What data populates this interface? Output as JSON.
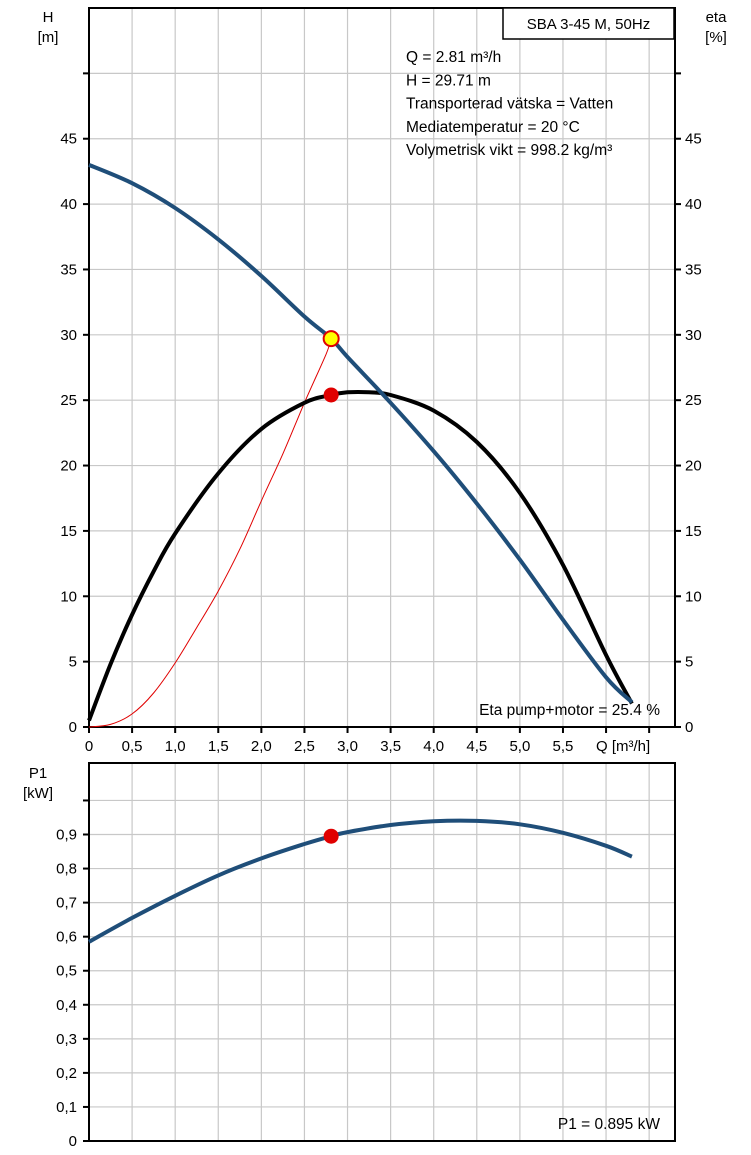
{
  "chart_data": [
    {
      "type": "line",
      "title": "SBA 3-45 M, 50Hz",
      "xlabel": "Q [m³/h]",
      "ylabel_left": {
        "name": "H",
        "unit": "[m]"
      },
      "ylabel_right": {
        "name": "eta",
        "unit": "[%]"
      },
      "xlim": [
        0,
        6.8
      ],
      "ylim": [
        0,
        55
      ],
      "x_tick_values": [
        0,
        0.5,
        1.0,
        1.5,
        2.0,
        2.5,
        3.0,
        3.5,
        4.0,
        4.5,
        5.0,
        5.5
      ],
      "x_tick_labels": [
        "0",
        "0,5",
        "1,0",
        "1,5",
        "2,0",
        "2,5",
        "3,0",
        "3,5",
        "4,0",
        "4,5",
        "5,0",
        "5,5"
      ],
      "y_tick_values": [
        0,
        5,
        10,
        15,
        20,
        25,
        30,
        35,
        40,
        45
      ],
      "y_tick_labels": [
        "0",
        "5",
        "10",
        "15",
        "20",
        "25",
        "30",
        "35",
        "40",
        "45"
      ],
      "info_lines": [
        "Q = 2.81 m³/h",
        "H = 29.71 m",
        "Transporterad vätska = Vatten",
        "Mediatemperatur = 20 °C",
        "Volymetrisk vikt = 998.2 kg/m³"
      ],
      "annotation": "Eta pump+motor = 25.4 %",
      "grid": true,
      "series": [
        {
          "key": "head",
          "color": "#1f4e79",
          "width": 4,
          "x": [
            0,
            0.5,
            1.0,
            1.5,
            2.0,
            2.5,
            2.81,
            3.0,
            3.5,
            4.0,
            4.5,
            5.0,
            5.5,
            6.0,
            6.3
          ],
          "y": [
            43.0,
            41.6,
            39.7,
            37.3,
            34.5,
            31.4,
            29.71,
            28.3,
            24.8,
            21.1,
            17.1,
            12.8,
            8.2,
            3.8,
            1.9
          ]
        },
        {
          "key": "eta",
          "color": "#000000",
          "width": 4,
          "x": [
            0,
            0.25,
            0.5,
            0.75,
            1.0,
            1.5,
            2.0,
            2.5,
            2.81,
            3.0,
            3.25,
            3.5,
            4.0,
            4.5,
            5.0,
            5.5,
            6.0,
            6.3
          ],
          "y": [
            0.5,
            4.8,
            8.6,
            11.9,
            14.8,
            19.4,
            22.8,
            24.8,
            25.4,
            25.6,
            25.6,
            25.4,
            24.2,
            21.8,
            17.9,
            12.4,
            5.5,
            1.8
          ]
        },
        {
          "key": "system-curve",
          "color": "#e00000",
          "width": 1,
          "x": [
            0,
            0.25,
            0.5,
            0.75,
            1.0,
            1.25,
            1.5,
            1.75,
            2.0,
            2.25,
            2.5,
            2.75,
            2.81
          ],
          "y": [
            0,
            0.2,
            1.0,
            2.6,
            4.9,
            7.6,
            10.4,
            13.6,
            17.3,
            20.9,
            24.8,
            28.5,
            29.71
          ]
        }
      ],
      "markers": [
        {
          "key": "duty-point",
          "x": 2.81,
          "y": 29.71,
          "fill": "#ffff00",
          "stroke": "#e00000"
        },
        {
          "key": "eta-point",
          "x": 2.81,
          "y": 25.4,
          "fill": "#e00000",
          "stroke": "#e00000"
        }
      ]
    },
    {
      "type": "line",
      "ylabel": {
        "name": "P1",
        "unit": "[kW]"
      },
      "xlim": [
        0,
        6.8
      ],
      "ylim": [
        0,
        1.0
      ],
      "y_tick_values": [
        0,
        0.1,
        0.2,
        0.3,
        0.4,
        0.5,
        0.6,
        0.7,
        0.8,
        0.9
      ],
      "y_tick_labels": [
        "0",
        "0,1",
        "0,2",
        "0,3",
        "0,4",
        "0,5",
        "0,6",
        "0,7",
        "0,8",
        "0,9"
      ],
      "annotation": "P1 = 0.895 kW",
      "grid": true,
      "series": [
        {
          "key": "power",
          "color": "#1f4e79",
          "width": 4,
          "x": [
            0,
            0.5,
            1.0,
            1.5,
            2.0,
            2.5,
            2.81,
            3.0,
            3.5,
            4.0,
            4.5,
            5.0,
            5.5,
            6.0,
            6.3
          ],
          "y": [
            0.585,
            0.655,
            0.72,
            0.78,
            0.83,
            0.872,
            0.895,
            0.907,
            0.928,
            0.939,
            0.94,
            0.93,
            0.905,
            0.867,
            0.835
          ]
        }
      ],
      "markers": [
        {
          "key": "power-point",
          "x": 2.81,
          "y": 0.895,
          "fill": "#e00000",
          "stroke": "#e00000"
        }
      ]
    }
  ]
}
